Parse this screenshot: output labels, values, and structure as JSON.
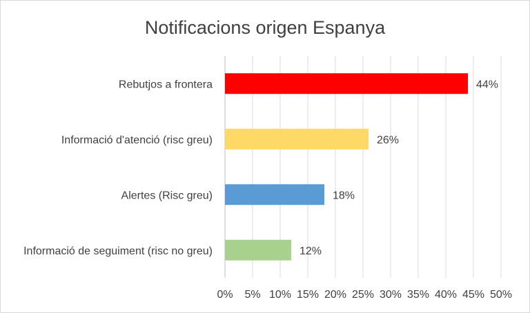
{
  "chart_data": {
    "type": "bar",
    "orientation": "horizontal",
    "title": "Notificacions origen Espanya",
    "categories": [
      "Rebutjos a frontera",
      "Informació d'atenció (risc greu)",
      "Alertes (Risc greu)",
      "Informació de seguiment (risc no greu)"
    ],
    "values": [
      44,
      26,
      18,
      12
    ],
    "value_labels": [
      "44%",
      "26%",
      "18%",
      "12%"
    ],
    "colors": [
      "#ff0000",
      "#ffd966",
      "#5b9bd5",
      "#a9d18e"
    ],
    "xlim": [
      0,
      50
    ],
    "x_ticks": [
      0,
      5,
      10,
      15,
      20,
      25,
      30,
      35,
      40,
      45,
      50
    ],
    "x_tick_labels": [
      "0%",
      "5%",
      "10%",
      "15%",
      "20%",
      "25%",
      "30%",
      "35%",
      "40%",
      "45%",
      "50%"
    ],
    "xlabel": "",
    "ylabel": "",
    "grid": true,
    "legend": "none"
  }
}
